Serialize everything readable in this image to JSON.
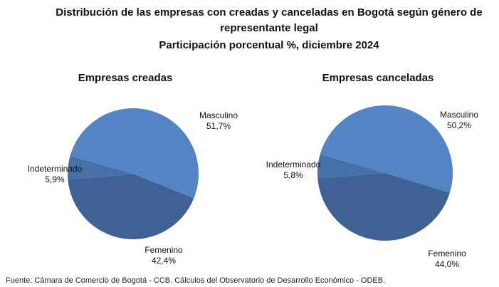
{
  "header": {
    "title": [
      "Distribución de las empresas con creadas y canceladas en Bogotá según género de",
      "representante legal",
      "Participación porcentual %, diciembre 2024"
    ]
  },
  "source": "Fuente: Cámara de Comercio de Bogotá - CCB. Cálculos del Observatorio de Desarrollo Económico - ODEB.",
  "chart_data": [
    {
      "type": "pie",
      "title": "Empresas creadas",
      "categories": [
        "Masculino",
        "Indeterminado",
        "Femenino"
      ],
      "values": [
        51.7,
        5.9,
        42.4
      ],
      "value_labels": [
        "51,7%",
        "5,9%",
        "42,4%"
      ],
      "colors": [
        "#5384c3",
        "#4870a8",
        "#3f6194"
      ]
    },
    {
      "type": "pie",
      "title": "Empresas canceladas",
      "categories": [
        "Masculino",
        "Indeterminado",
        "Femenino"
      ],
      "values": [
        50.2,
        5.8,
        44.0
      ],
      "value_labels": [
        "50,2%",
        "5,8%",
        "44,0%"
      ],
      "colors": [
        "#5384c3",
        "#4870a8",
        "#3f6194"
      ]
    }
  ]
}
